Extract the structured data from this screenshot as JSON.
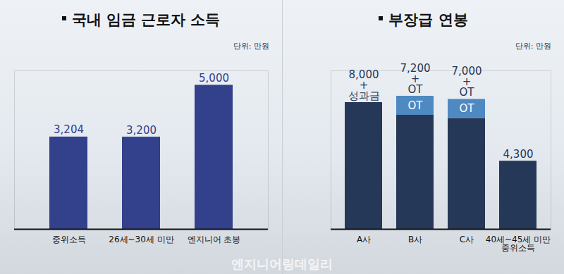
{
  "chart_data": [
    {
      "type": "bar",
      "title": "국내 임금 근로자 소득",
      "subtitle": "단위: 만원",
      "categories": [
        "중위소득",
        "26세~30세 미만",
        "엔지니어 초봉"
      ],
      "values": [
        3204,
        3200,
        5000
      ],
      "value_labels": [
        "3,204",
        "3,200",
        "5,000"
      ],
      "color": "#33408c",
      "ylim": [
        0,
        5500
      ],
      "tick_labels": "x",
      "data_labels": true
    },
    {
      "type": "bar",
      "title": "부장급 연봉",
      "subtitle": "단위: 만원",
      "categories": [
        "A사",
        "B사",
        "C사",
        "40세~45세 미만\n중위소득"
      ],
      "stacked": true,
      "series": [
        {
          "color": "#263857",
          "values": [
            8000,
            7200,
            7000,
            4300
          ],
          "value_labels": [
            "8,000\n+\n성과금",
            "7,200\n+\nOT",
            "7,000\n+\nOT",
            "4,300"
          ]
        },
        {
          "name": "OT",
          "color": "#4f89c2",
          "values": [
            null,
            1200,
            1200,
            null
          ]
        }
      ],
      "ylim": [
        0,
        10000
      ],
      "tick_labels": "x",
      "data_labels": true
    }
  ],
  "watermark": "엔지니어링데일리"
}
